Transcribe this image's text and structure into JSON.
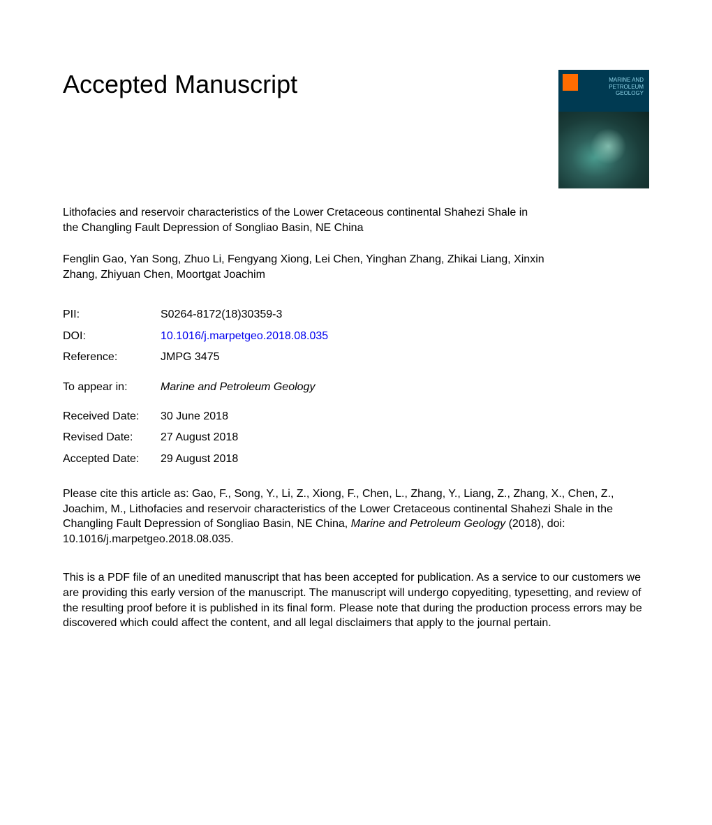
{
  "heading": "Accepted Manuscript",
  "title": "Lithofacies and reservoir characteristics of the Lower Cretaceous continental Shahezi Shale in the Changling Fault Depression of Songliao Basin, NE China",
  "authors": "Fenglin Gao, Yan Song, Zhuo Li, Fengyang Xiong, Lei Chen, Yinghan Zhang, Zhikai Liang, Xinxin Zhang, Zhiyuan Chen, Moortgat Joachim",
  "meta": {
    "pii_label": "PII:",
    "pii_value": "S0264-8172(18)30359-3",
    "doi_label": "DOI:",
    "doi_value": "10.1016/j.marpetgeo.2018.08.035",
    "ref_label": "Reference:",
    "ref_value": "JMPG 3475",
    "appear_label": "To appear in:",
    "appear_value": "Marine and Petroleum Geology",
    "received_label": "Received Date:",
    "received_value": "30 June 2018",
    "revised_label": "Revised Date:",
    "revised_value": "27 August 2018",
    "accepted_label": "Accepted Date:",
    "accepted_value": "29 August 2018"
  },
  "citation_prefix": "Please cite this article as: Gao, F., Song, Y., Li, Z., Xiong, F., Chen, L., Zhang, Y., Liang, Z., Zhang, X., Chen, Z., Joachim, M., Lithofacies and reservoir characteristics of the Lower Cretaceous continental Shahezi Shale in the Changling Fault Depression of Songliao Basin, NE China, ",
  "citation_journal": "Marine and Petroleum Geology",
  "citation_suffix": " (2018), doi: 10.1016/j.marpetgeo.2018.08.035.",
  "disclaimer": "This is a PDF file of an unedited manuscript that has been accepted for publication. As a service to our customers we are providing this early version of the manuscript. The manuscript will undergo copyediting, typesetting, and review of the resulting proof before it is published in its final form. Please note that during the production process errors may be discovered which could affect the content, and all legal disclaimers that apply to the journal pertain.",
  "cover": {
    "journal_line1": "MARINE AND",
    "journal_line2": "PETROLEUM",
    "journal_line3": "GEOLOGY",
    "bg_color": "#003a52",
    "logo_color": "#ff6c00"
  }
}
